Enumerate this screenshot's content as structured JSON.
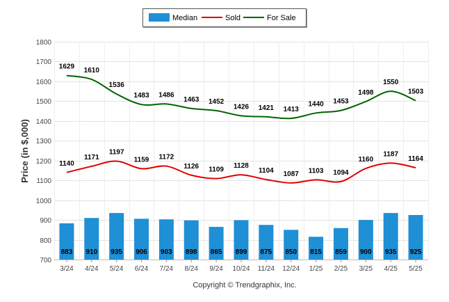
{
  "chart_data": {
    "type": "bar",
    "categories": [
      "3/24",
      "4/24",
      "5/24",
      "6/24",
      "7/24",
      "8/24",
      "9/24",
      "10/24",
      "11/24",
      "12/24",
      "1/25",
      "2/25",
      "3/25",
      "4/25",
      "5/25"
    ],
    "series": [
      {
        "name": "Median",
        "type": "bar",
        "color": "#1f8fd6",
        "values": [
          883,
          910,
          935,
          906,
          903,
          898,
          865,
          899,
          875,
          850,
          815,
          859,
          900,
          935,
          925
        ]
      },
      {
        "name": "Sold",
        "type": "line",
        "color": "#e00000",
        "values": [
          1140,
          1171,
          1197,
          1159,
          1172,
          1126,
          1109,
          1128,
          1104,
          1087,
          1103,
          1094,
          1160,
          1187,
          1164
        ]
      },
      {
        "name": "For Sale",
        "type": "line",
        "color": "#006400",
        "values": [
          1629,
          1610,
          1536,
          1483,
          1486,
          1463,
          1452,
          1426,
          1421,
          1413,
          1440,
          1453,
          1498,
          1550,
          1503
        ]
      }
    ],
    "title": "",
    "xlabel": "",
    "ylabel": "Price (in $,000)",
    "ylim": [
      700,
      1800
    ],
    "yticks": [
      700,
      800,
      900,
      1000,
      1100,
      1200,
      1300,
      1400,
      1500,
      1600,
      1700,
      1800
    ],
    "grid": true,
    "legend_position": "top-center"
  },
  "legend": {
    "items": [
      {
        "label": "Median",
        "color": "#1f8fd6",
        "icon": "bar-swatch"
      },
      {
        "label": "Sold",
        "color": "#e00000",
        "icon": "line-swatch"
      },
      {
        "label": "For Sale",
        "color": "#006400",
        "icon": "line-swatch"
      }
    ]
  },
  "footer": {
    "copyright": "Copyright © Trendgraphix, Inc."
  }
}
